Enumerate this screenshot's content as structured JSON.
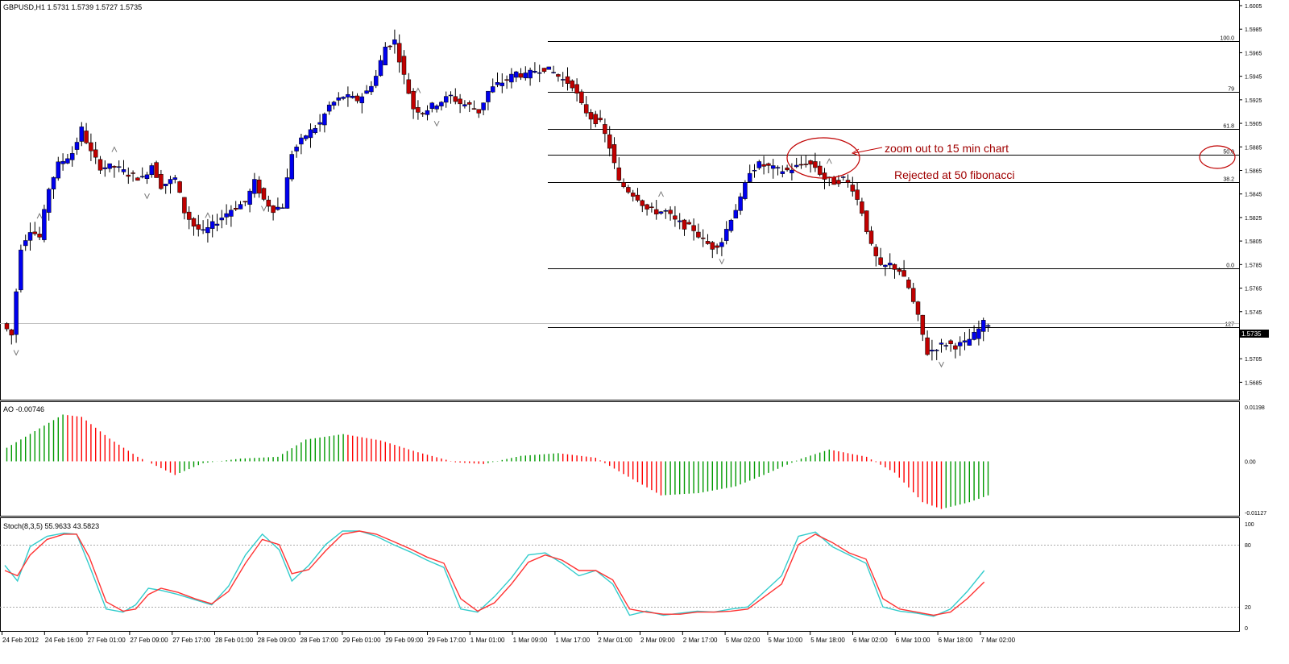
{
  "chart_data": [
    {
      "type": "candlestick",
      "title": "GBPUSD,H1  1.5731 1.5739 1.5727 1.5735",
      "symbol": "GBPUSD",
      "timeframe": "H1",
      "ohlc_header": {
        "open": 1.5731,
        "high": 1.5739,
        "low": 1.5727,
        "close": 1.5735
      },
      "current_price_label": "1.5735",
      "ylim": [
        1.5675,
        1.6005
      ],
      "y_ticks": [
        "1.6005",
        "1.5985",
        "1.5965",
        "1.5945",
        "1.5925",
        "1.5905",
        "1.5885",
        "1.5865",
        "1.5845",
        "1.5825",
        "1.5805",
        "1.5785",
        "1.5765",
        "1.5745",
        "1.5725",
        "1.5705",
        "1.5685"
      ],
      "x_tick_labels": [
        "24 Feb 2012",
        "24 Feb 16:00",
        "27 Feb 01:00",
        "27 Feb 09:00",
        "27 Feb 17:00",
        "28 Feb 01:00",
        "28 Feb 09:00",
        "28 Feb 17:00",
        "29 Feb 01:00",
        "29 Feb 09:00",
        "29 Feb 17:00",
        "1 Mar 01:00",
        "1 Mar 09:00",
        "1 Mar 17:00",
        "2 Mar 01:00",
        "2 Mar 09:00",
        "2 Mar 17:00",
        "5 Mar 02:00",
        "5 Mar 10:00",
        "5 Mar 18:00",
        "6 Mar 02:00",
        "6 Mar 10:00",
        "6 Mar 18:00",
        "7 Mar 02:00"
      ],
      "up_color": "#0000ee",
      "down_color": "#c00000",
      "waypoints": [
        [
          0,
          1.5735
        ],
        [
          2,
          1.5725
        ],
        [
          4,
          1.58
        ],
        [
          6,
          1.5815
        ],
        [
          8,
          1.5808
        ],
        [
          10,
          1.585
        ],
        [
          12,
          1.587
        ],
        [
          15,
          1.588
        ],
        [
          17,
          1.59
        ],
        [
          19,
          1.588
        ],
        [
          21,
          1.5868
        ],
        [
          24,
          1.5868
        ],
        [
          27,
          1.5862
        ],
        [
          30,
          1.5858
        ],
        [
          32,
          1.587
        ],
        [
          34,
          1.5852
        ],
        [
          37,
          1.5858
        ],
        [
          39,
          1.583
        ],
        [
          41,
          1.5818
        ],
        [
          43,
          1.5812
        ],
        [
          46,
          1.5822
        ],
        [
          49,
          1.5832
        ],
        [
          52,
          1.5838
        ],
        [
          54,
          1.5855
        ],
        [
          56,
          1.584
        ],
        [
          58,
          1.5832
        ],
        [
          60,
          1.5835
        ],
        [
          62,
          1.588
        ],
        [
          65,
          1.5895
        ],
        [
          68,
          1.5905
        ],
        [
          70,
          1.592
        ],
        [
          73,
          1.5928
        ],
        [
          76,
          1.5925
        ],
        [
          78,
          1.5932
        ],
        [
          80,
          1.5945
        ],
        [
          82,
          1.597
        ],
        [
          84,
          1.5975
        ],
        [
          86,
          1.5945
        ],
        [
          88,
          1.5918
        ],
        [
          90,
          1.5915
        ],
        [
          93,
          1.5922
        ],
        [
          96,
          1.5928
        ],
        [
          98,
          1.5922
        ],
        [
          100,
          1.592
        ],
        [
          102,
          1.5915
        ],
        [
          104,
          1.5932
        ],
        [
          106,
          1.5938
        ],
        [
          108,
          1.5942
        ],
        [
          110,
          1.5948
        ],
        [
          112,
          1.5945
        ],
        [
          114,
          1.595
        ],
        [
          116,
          1.5952
        ],
        [
          118,
          1.5948
        ],
        [
          120,
          1.5942
        ],
        [
          122,
          1.5938
        ],
        [
          124,
          1.592
        ],
        [
          126,
          1.591
        ],
        [
          128,
          1.5905
        ],
        [
          130,
          1.5885
        ],
        [
          132,
          1.5855
        ],
        [
          134,
          1.5848
        ],
        [
          136,
          1.5842
        ],
        [
          138,
          1.5832
        ],
        [
          140,
          1.583
        ],
        [
          142,
          1.583
        ],
        [
          144,
          1.5822
        ],
        [
          146,
          1.5818
        ],
        [
          148,
          1.5815
        ],
        [
          150,
          1.5805
        ],
        [
          152,
          1.58
        ],
        [
          154,
          1.5805
        ],
        [
          156,
          1.5825
        ],
        [
          158,
          1.584
        ],
        [
          160,
          1.5865
        ],
        [
          162,
          1.587
        ],
        [
          164,
          1.5868
        ],
        [
          166,
          1.5865
        ],
        [
          168,
          1.5865
        ],
        [
          170,
          1.5868
        ],
        [
          172,
          1.5872
        ],
        [
          174,
          1.5868
        ],
        [
          176,
          1.5858
        ],
        [
          178,
          1.5855
        ],
        [
          180,
          1.5858
        ],
        [
          182,
          1.585
        ],
        [
          184,
          1.583
        ],
        [
          186,
          1.58
        ],
        [
          188,
          1.5782
        ],
        [
          190,
          1.5785
        ],
        [
          192,
          1.578
        ],
        [
          194,
          1.5765
        ],
        [
          196,
          1.574
        ],
        [
          198,
          1.571
        ],
        [
          200,
          1.5715
        ],
        [
          202,
          1.5718
        ],
        [
          204,
          1.5716
        ],
        [
          206,
          1.5718
        ],
        [
          208,
          1.5725
        ],
        [
          210,
          1.5735
        ]
      ],
      "swing_markers": [
        {
          "type": "low",
          "bar": 2
        },
        {
          "type": "high",
          "bar": 7
        },
        {
          "type": "high",
          "bar": 23
        },
        {
          "type": "low",
          "bar": 30
        },
        {
          "type": "high",
          "bar": 43
        },
        {
          "type": "low",
          "bar": 55
        },
        {
          "type": "high",
          "bar": 88
        },
        {
          "type": "low",
          "bar": 92
        },
        {
          "type": "high",
          "bar": 140
        },
        {
          "type": "low",
          "bar": 153
        },
        {
          "type": "high",
          "bar": 176
        },
        {
          "type": "low",
          "bar": 200
        }
      ],
      "fibonacci": {
        "levels": [
          {
            "label": "100.0",
            "price": 1.5975
          },
          {
            "label": "79",
            "price": 1.5932
          },
          {
            "label": "61.8",
            "price": 1.59
          },
          {
            "label": "50.0",
            "price": 1.5878
          },
          {
            "label": "38.2",
            "price": 1.5855
          },
          {
            "label": "0.0",
            "price": 1.5782
          },
          {
            "label": "127",
            "price": 1.5732
          }
        ]
      },
      "annotations": [
        {
          "text": "zoom out to 15 min chart",
          "color": "#a00000"
        },
        {
          "text": "Rejected at 50 fibonacci",
          "color": "#a00000"
        }
      ]
    },
    {
      "type": "bar",
      "title": "AO -0.00746",
      "indicator": "Awesome Oscillator",
      "value": -0.00746,
      "y_ticks": [
        "0.01198",
        "0.00",
        "-0.01127"
      ],
      "ylim": [
        -0.01127,
        0.01198
      ],
      "rising_color": "#009900",
      "falling_color": "#ff0000",
      "waypoints": [
        [
          0,
          0.003
        ],
        [
          12,
          0.0103
        ],
        [
          16,
          0.0098
        ],
        [
          22,
          0.005
        ],
        [
          28,
          0.001
        ],
        [
          36,
          -0.003
        ],
        [
          42,
          -0.0004
        ],
        [
          50,
          0.0006
        ],
        [
          58,
          0.001
        ],
        [
          64,
          0.0048
        ],
        [
          72,
          0.006
        ],
        [
          80,
          0.0046
        ],
        [
          88,
          0.002
        ],
        [
          96,
          -0.0002
        ],
        [
          102,
          -0.0006
        ],
        [
          110,
          0.0012
        ],
        [
          118,
          0.0018
        ],
        [
          126,
          0.0008
        ],
        [
          132,
          -0.0028
        ],
        [
          140,
          -0.0075
        ],
        [
          148,
          -0.007
        ],
        [
          156,
          -0.0055
        ],
        [
          162,
          -0.003
        ],
        [
          170,
          0.0006
        ],
        [
          176,
          0.0026
        ],
        [
          184,
          0.001
        ],
        [
          190,
          -0.0025
        ],
        [
          196,
          -0.009
        ],
        [
          200,
          -0.0105
        ],
        [
          206,
          -0.009
        ],
        [
          210,
          -0.0075
        ]
      ]
    },
    {
      "type": "line",
      "title": "Stoch(8,3,5) 55.9633 43.5823",
      "indicator": "Stochastic Oscillator",
      "parameters": [
        8,
        3,
        5
      ],
      "main_value": 55.9633,
      "signal_value": 43.5823,
      "ylim": [
        0,
        100
      ],
      "y_ticks": [
        "100",
        "80",
        "20",
        "0"
      ],
      "levels": [
        80,
        20
      ],
      "series": [
        {
          "color": "#33cccc",
          "points": [
            [
              0,
              60
            ],
            [
              3,
              45
            ],
            [
              6,
              78
            ],
            [
              10,
              88
            ],
            [
              14,
              91
            ],
            [
              17,
              90
            ],
            [
              20,
              60
            ],
            [
              24,
              18
            ],
            [
              28,
              15
            ],
            [
              31,
              22
            ],
            [
              34,
              38
            ],
            [
              37,
              36
            ],
            [
              41,
              32
            ],
            [
              45,
              27
            ],
            [
              49,
              22
            ],
            [
              53,
              40
            ],
            [
              57,
              70
            ],
            [
              61,
              90
            ],
            [
              65,
              75
            ],
            [
              68,
              45
            ],
            [
              72,
              60
            ],
            [
              76,
              80
            ],
            [
              80,
              93
            ],
            [
              84,
              93
            ],
            [
              88,
              88
            ],
            [
              92,
              80
            ],
            [
              96,
              73
            ],
            [
              100,
              65
            ],
            [
              104,
              58
            ],
            [
              108,
              18
            ],
            [
              112,
              15
            ],
            [
              116,
              30
            ],
            [
              120,
              48
            ],
            [
              124,
              70
            ],
            [
              128,
              72
            ],
            [
              132,
              62
            ],
            [
              136,
              50
            ],
            [
              140,
              55
            ],
            [
              144,
              42
            ],
            [
              148,
              12
            ],
            [
              152,
              16
            ],
            [
              156,
              12
            ],
            [
              160,
              14
            ],
            [
              164,
              16
            ],
            [
              168,
              15
            ],
            [
              172,
              18
            ],
            [
              176,
              20
            ],
            [
              180,
              35
            ],
            [
              184,
              50
            ],
            [
              188,
              88
            ],
            [
              192,
              92
            ],
            [
              196,
              78
            ],
            [
              200,
              70
            ],
            [
              204,
              62
            ],
            [
              208,
              20
            ],
            [
              212,
              16
            ],
            [
              216,
              14
            ],
            [
              220,
              11
            ],
            [
              224,
              18
            ],
            [
              228,
              35
            ],
            [
              232,
              55
            ]
          ]
        },
        {
          "color": "#ff3333",
          "points": [
            [
              0,
              55
            ],
            [
              3,
              50
            ],
            [
              6,
              70
            ],
            [
              10,
              85
            ],
            [
              14,
              90
            ],
            [
              17,
              90
            ],
            [
              20,
              68
            ],
            [
              24,
              25
            ],
            [
              28,
              16
            ],
            [
              31,
              18
            ],
            [
              34,
              32
            ],
            [
              37,
              38
            ],
            [
              41,
              34
            ],
            [
              45,
              28
            ],
            [
              49,
              23
            ],
            [
              53,
              35
            ],
            [
              57,
              62
            ],
            [
              61,
              85
            ],
            [
              65,
              80
            ],
            [
              68,
              52
            ],
            [
              72,
              56
            ],
            [
              76,
              74
            ],
            [
              80,
              90
            ],
            [
              84,
              93
            ],
            [
              88,
              90
            ],
            [
              92,
              83
            ],
            [
              96,
              76
            ],
            [
              100,
              68
            ],
            [
              104,
              62
            ],
            [
              108,
              28
            ],
            [
              112,
              16
            ],
            [
              116,
              24
            ],
            [
              120,
              42
            ],
            [
              124,
              63
            ],
            [
              128,
              70
            ],
            [
              132,
              65
            ],
            [
              136,
              55
            ],
            [
              140,
              55
            ],
            [
              144,
              46
            ],
            [
              148,
              18
            ],
            [
              152,
              15
            ],
            [
              156,
              13
            ],
            [
              160,
              13
            ],
            [
              164,
              15
            ],
            [
              168,
              15
            ],
            [
              172,
              16
            ],
            [
              176,
              18
            ],
            [
              180,
              30
            ],
            [
              184,
              42
            ],
            [
              188,
              80
            ],
            [
              192,
              90
            ],
            [
              196,
              82
            ],
            [
              200,
              72
            ],
            [
              204,
              66
            ],
            [
              208,
              28
            ],
            [
              212,
              18
            ],
            [
              216,
              15
            ],
            [
              220,
              12
            ],
            [
              224,
              15
            ],
            [
              228,
              28
            ],
            [
              232,
              44
            ]
          ]
        }
      ]
    }
  ]
}
